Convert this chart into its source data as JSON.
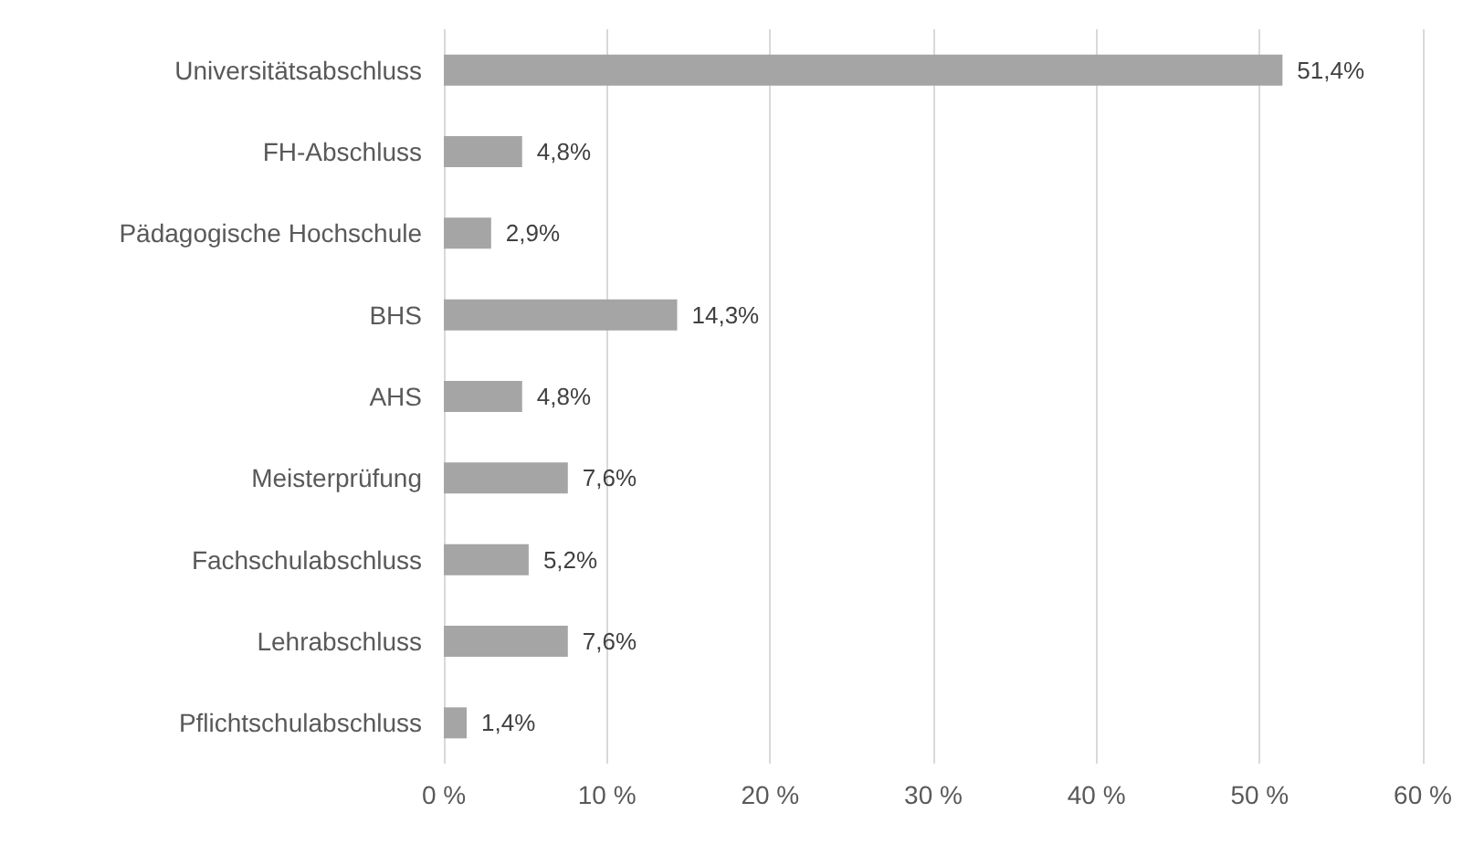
{
  "chart_data": {
    "type": "bar",
    "orientation": "horizontal",
    "categories": [
      "Universitätsabschluss",
      "FH-Abschluss",
      "Pädagogische Hochschule",
      "BHS",
      "AHS",
      "Meisterprüfung",
      "Fachschulabschluss",
      "Lehrabschluss",
      "Pflichtschulabschluss"
    ],
    "values": [
      51.4,
      4.8,
      2.9,
      14.3,
      4.8,
      7.6,
      5.2,
      7.6,
      1.4
    ],
    "value_labels": [
      "51,4%",
      "4,8%",
      "2,9%",
      "14,3%",
      "4,8%",
      "7,6%",
      "5,2%",
      "7,6%",
      "1,4%"
    ],
    "color": "#a5a5a5",
    "xlim": [
      0,
      60
    ],
    "xticks": [
      {
        "value": 0,
        "label": "0 %"
      },
      {
        "value": 10,
        "label": "10 %"
      },
      {
        "value": 20,
        "label": "20 %"
      },
      {
        "value": 30,
        "label": "30 %"
      },
      {
        "value": 40,
        "label": "40 %"
      },
      {
        "value": 50,
        "label": "50 %"
      },
      {
        "value": 60,
        "label": "60 %"
      }
    ],
    "grid": "x"
  }
}
